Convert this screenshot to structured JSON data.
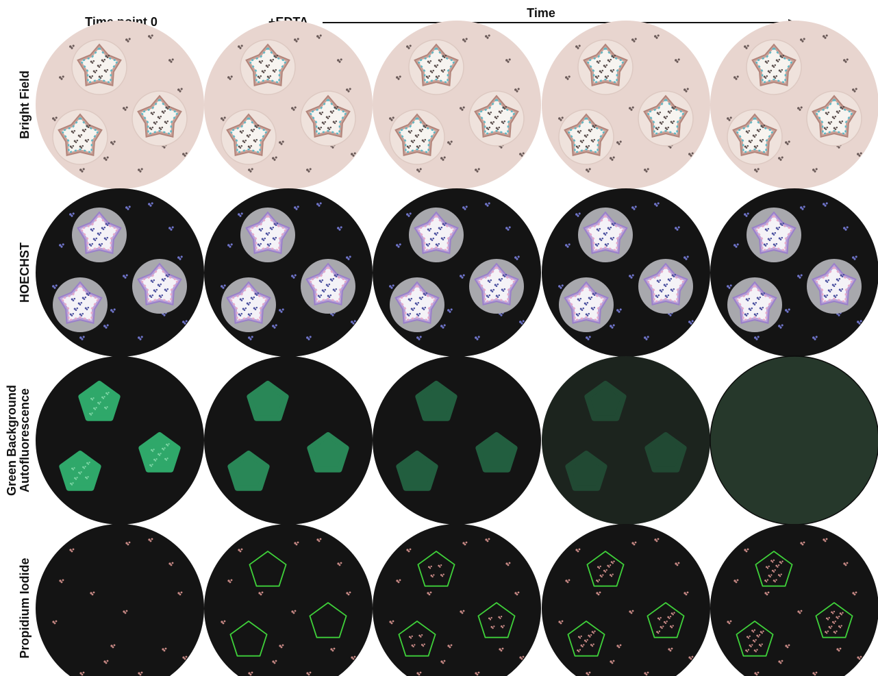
{
  "header": {
    "time_point_0": "Time point 0",
    "edta": "+EDTA",
    "time": "Time"
  },
  "rows": [
    {
      "id": "bright-field",
      "label_lines": [
        "Bright Field"
      ],
      "style": "bright"
    },
    {
      "id": "hoechst",
      "label_lines": [
        "HOECHST"
      ],
      "style": "hoechst"
    },
    {
      "id": "green-autofluorescence",
      "label_lines": [
        "Green Background",
        "Autofluorescence"
      ],
      "style": "green"
    },
    {
      "id": "propidium-iodide",
      "label_lines": [
        "Propidium Iodide"
      ],
      "style": "pi"
    }
  ],
  "colors": {
    "bright_bg": "#e8d5cf",
    "dark_bg": "#141414",
    "hoechst_disc": "#a8a8ad",
    "green_organoid": "#2fa86a",
    "pi_outline": "#3fd13a",
    "pi_cells": "#c98a86",
    "hoechst_cells": "#6f74c9",
    "bright_cells": "#6a5a58"
  },
  "green_row": {
    "organoid_opacity": [
      1.0,
      0.78,
      0.5,
      0.28,
      0.0
    ],
    "background_tint": [
      0.0,
      0.0,
      0.0,
      0.45,
      1.0
    ]
  },
  "pi_row": {
    "outline_shown": [
      false,
      true,
      true,
      true,
      true
    ],
    "inner_dead_cells": [
      0,
      0,
      4,
      7,
      9
    ]
  },
  "icons": [
    "organoid-icon",
    "single-cell-icon",
    "time-arrow-icon"
  ]
}
